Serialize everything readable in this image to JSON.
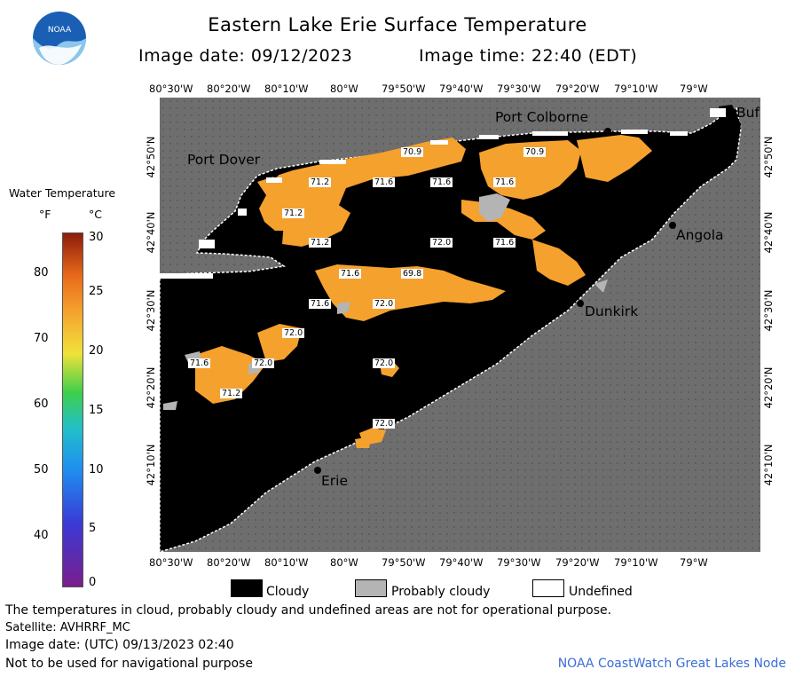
{
  "header": {
    "title": "Eastern Lake Erie Surface Temperature",
    "image_date_label": "Image date: 09/12/2023",
    "image_time_label": "Image time: 22:40 (EDT)",
    "logo_text": "NOAA"
  },
  "map": {
    "top_longitudes": [
      "80°30'W",
      "80°20'W",
      "80°10'W",
      "80°W",
      "79°50'W",
      "79°40'W",
      "79°30'W",
      "79°20'W",
      "79°10'W",
      "79°W"
    ],
    "bottom_longitudes": [
      "80°30'W",
      "80°20'W",
      "80°10'W",
      "80°W",
      "79°50'W",
      "79°40'W",
      "79°30'W",
      "79°20'W",
      "79°10'W",
      "79°W"
    ],
    "left_latitudes": [
      "42°50'N",
      "42°40'N",
      "42°30'N",
      "42°20'N",
      "42°10'N"
    ],
    "right_latitudes": [
      "42°50'N",
      "42°40'N",
      "42°30'N",
      "42°20'N",
      "42°10'N"
    ],
    "places": {
      "port_colborne": "Port Colborne",
      "port_dover": "Port Dover",
      "buffalo": "Buf",
      "angola": "Angola",
      "dunkirk": "Dunkirk",
      "erie": "Erie"
    },
    "temperature_labels": [
      "70.9",
      "70.9",
      "71.2",
      "71.6",
      "71.6",
      "71.6",
      "71.2",
      "71.2",
      "72.0",
      "71.6",
      "71.6",
      "69.8",
      "71.6",
      "72.0",
      "72.0",
      "71.6",
      "72.0",
      "71.2",
      "72.0",
      "72.0"
    ],
    "colors": {
      "water_warm": "#f5a12e",
      "cloud": "#000000",
      "land": "#6e6e6e",
      "probably_cloudy": "#b4b4b4",
      "undefined": "#ffffff"
    }
  },
  "legend": {
    "title": "Water Temperature",
    "unit_f": "°F",
    "unit_c": "°C",
    "fahrenheit_ticks": [
      "80",
      "70",
      "60",
      "50",
      "40"
    ],
    "celsius_ticks": [
      "30",
      "25",
      "20",
      "15",
      "10",
      "5",
      "0"
    ]
  },
  "key": {
    "cloudy": "Cloudy",
    "probably_cloudy": "Probably cloudy",
    "undefined": "Undefined"
  },
  "footer": {
    "disclaimer": "The temperatures in cloud, probably cloudy and undefined areas are not for operational purpose.",
    "satellite": "Satellite: AVHRRF_MC",
    "utc_date": "Image date: (UTC) 09/13/2023  02:40",
    "navigation": "Not to be used for navigational purpose",
    "credit": "NOAA CoastWatch Great Lakes Node"
  }
}
